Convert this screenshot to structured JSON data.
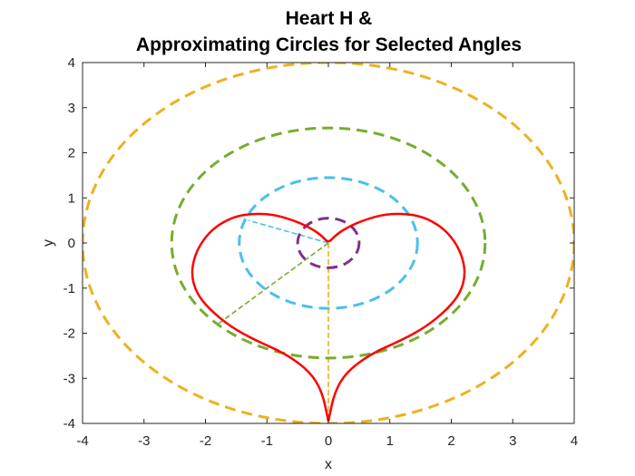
{
  "chart_data": {
    "type": "line",
    "title_lines": [
      "Heart H &",
      "Approximating Circles for Selected Angles"
    ],
    "xlabel": "x",
    "ylabel": "y",
    "xlim": [
      -4,
      4
    ],
    "ylim": [
      -4,
      4
    ],
    "xticks": [
      -4,
      -3,
      -2,
      -1,
      0,
      1,
      2,
      3,
      4
    ],
    "yticks": [
      -4,
      -3,
      -2,
      -1,
      0,
      1,
      2,
      3,
      4
    ],
    "grid": false,
    "legend": "none",
    "series": [
      {
        "kind": "heart-curve",
        "color": "#ff0000",
        "style": "solid",
        "points": [
          [
            0,
            -3.95
          ],
          [
            0.1,
            -3.3
          ],
          [
            0.3,
            -2.85
          ],
          [
            0.7,
            -2.45
          ],
          [
            1.2,
            -2.15
          ],
          [
            1.6,
            -1.85
          ],
          [
            1.95,
            -1.45
          ],
          [
            2.15,
            -1.1
          ],
          [
            2.23,
            -0.7
          ],
          [
            2.18,
            -0.3
          ],
          [
            2.05,
            0.05
          ],
          [
            1.85,
            0.35
          ],
          [
            1.55,
            0.58
          ],
          [
            1.2,
            0.66
          ],
          [
            0.85,
            0.62
          ],
          [
            0.5,
            0.47
          ],
          [
            0.25,
            0.3
          ],
          [
            0.1,
            0.15
          ],
          [
            0,
            0
          ],
          [
            -0.1,
            0.15
          ],
          [
            -0.25,
            0.3
          ],
          [
            -0.5,
            0.47
          ],
          [
            -0.85,
            0.62
          ],
          [
            -1.2,
            0.66
          ],
          [
            -1.55,
            0.58
          ],
          [
            -1.85,
            0.35
          ],
          [
            -2.05,
            0.05
          ],
          [
            -2.18,
            -0.3
          ],
          [
            -2.23,
            -0.7
          ],
          [
            -2.15,
            -1.1
          ],
          [
            -1.95,
            -1.45
          ],
          [
            -1.6,
            -1.85
          ],
          [
            -1.2,
            -2.15
          ],
          [
            -0.7,
            -2.45
          ],
          [
            -0.3,
            -2.85
          ],
          [
            -0.1,
            -3.3
          ],
          [
            0,
            -3.95
          ]
        ]
      }
    ],
    "circles": [
      {
        "color": "#edb120",
        "cx": 0,
        "cy": 0,
        "rx": 4.0,
        "ry": 4.0,
        "radius_to": [
          0,
          -3.95
        ]
      },
      {
        "color": "#77ac30",
        "cx": 0,
        "cy": 0,
        "rx": 2.55,
        "ry": 2.55,
        "radius_to": [
          -1.8,
          -1.8
        ]
      },
      {
        "color": "#4dbeee",
        "cx": 0,
        "cy": 0,
        "rx": 1.45,
        "ry": 1.45,
        "radius_to": [
          -1.3,
          0.5
        ]
      },
      {
        "color": "#7e2f8e",
        "cx": 0,
        "cy": 0,
        "rx": 0.5,
        "ry": 0.55,
        "radius_to": null
      }
    ]
  }
}
